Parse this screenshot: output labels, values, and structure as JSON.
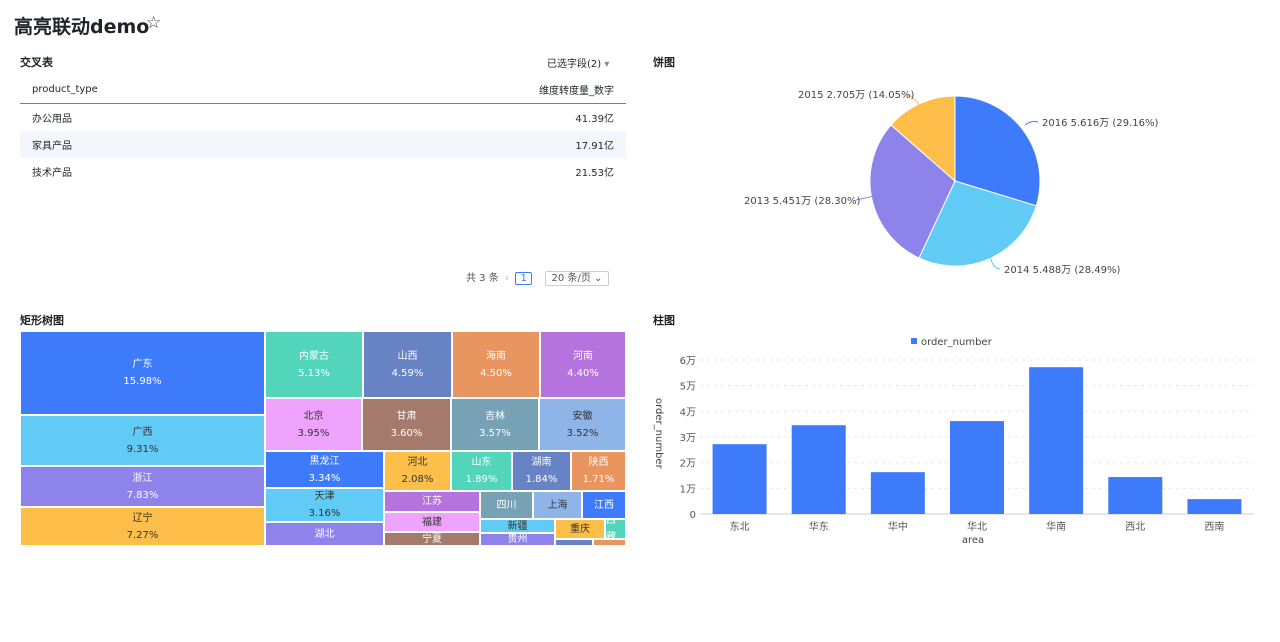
{
  "header": {
    "title": "高亮联动demo",
    "star": "☆"
  },
  "crosstab": {
    "title": "交叉表",
    "field_selector": "已选字段(2)",
    "columns": [
      "product_type",
      "维度转度量_数字"
    ],
    "rows": [
      [
        "办公用品",
        "41.39亿"
      ],
      [
        "家具产品",
        "17.91亿"
      ],
      [
        "技术产品",
        "21.53亿"
      ]
    ],
    "pager": {
      "total": "共 3 条",
      "prev": "‹",
      "page": "1",
      "page_size": "20 条/页"
    }
  },
  "pie": {
    "title": "饼图",
    "labels": [
      "2016 5.616万 (29.16%)",
      "2014 5.488万 (28.49%)",
      "2013 5.451万 (28.30%)",
      "2015 2.705万 (14.05%)"
    ]
  },
  "treemap": {
    "title": "矩形树图",
    "tiles": [
      [
        "广东",
        "15.98%"
      ],
      [
        "广西",
        "9.31%"
      ],
      [
        "浙江",
        "7.83%"
      ],
      [
        "辽宁",
        "7.27%"
      ],
      [
        "内蒙古",
        "5.13%"
      ],
      [
        "山西",
        "4.59%"
      ],
      [
        "海南",
        "4.50%"
      ],
      [
        "河南",
        "4.40%"
      ],
      [
        "北京",
        "3.95%"
      ],
      [
        "甘肃",
        "3.60%"
      ],
      [
        "吉林",
        "3.57%"
      ],
      [
        "安徽",
        "3.52%"
      ],
      [
        "黑龙江",
        "3.34%"
      ],
      [
        "天津",
        "3.16%"
      ],
      [
        "湖北",
        ""
      ],
      [
        "河北",
        "2.08%"
      ],
      [
        "山东",
        "1.89%"
      ],
      [
        "湖南",
        "1.84%"
      ],
      [
        "陕西",
        "1.71%"
      ],
      [
        "江苏",
        ""
      ],
      [
        "福建",
        ""
      ],
      [
        "宁夏",
        ""
      ],
      [
        "四川",
        ""
      ],
      [
        "上海",
        ""
      ],
      [
        "江西",
        ""
      ],
      [
        "新疆",
        ""
      ],
      [
        "贵州",
        ""
      ],
      [
        "重庆",
        ""
      ],
      [
        "西藏",
        ""
      ]
    ]
  },
  "chart_data": {
    "type": "bar",
    "title": "柱图",
    "legend": "order_number",
    "xlabel": "area",
    "ylabel": "order_number",
    "categories": [
      "东北",
      "华东",
      "华中",
      "华北",
      "华南",
      "西北",
      "西南"
    ],
    "values": [
      27200,
      34600,
      16300,
      36200,
      57200,
      14400,
      5800
    ],
    "ylim": [
      0,
      60000
    ],
    "yticks": [
      "0",
      "1万",
      "2万",
      "3万",
      "4万",
      "5万",
      "6万"
    ],
    "color": "#3e7bfa"
  }
}
